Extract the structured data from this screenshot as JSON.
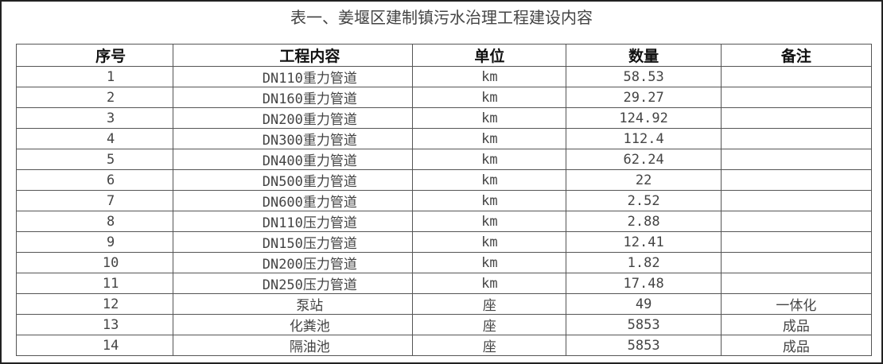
{
  "title": "表一、姜堰区建制镇污水治理工程建设内容",
  "table": {
    "headers": [
      "序号",
      "工程内容",
      "单位",
      "数量",
      "备注"
    ],
    "rows": [
      [
        "1",
        "DN110重力管道",
        "km",
        "58.53",
        ""
      ],
      [
        "2",
        "DN160重力管道",
        "km",
        "29.27",
        ""
      ],
      [
        "3",
        "DN200重力管道",
        "km",
        "124.92",
        ""
      ],
      [
        "4",
        "DN300重力管道",
        "km",
        "112.4",
        ""
      ],
      [
        "5",
        "DN400重力管道",
        "km",
        "62.24",
        ""
      ],
      [
        "6",
        "DN500重力管道",
        "km",
        "22",
        ""
      ],
      [
        "7",
        "DN600重力管道",
        "km",
        "2.52",
        ""
      ],
      [
        "8",
        "DN110压力管道",
        "km",
        "2.88",
        ""
      ],
      [
        "9",
        "DN150压力管道",
        "km",
        "12.41",
        ""
      ],
      [
        "10",
        "DN200压力管道",
        "km",
        "1.82",
        ""
      ],
      [
        "11",
        "DN250压力管道",
        "km",
        "17.48",
        ""
      ],
      [
        "12",
        "泵站",
        "座",
        "49",
        "一体化"
      ],
      [
        "13",
        "化粪池",
        "座",
        "5853",
        "成品"
      ],
      [
        "14",
        "隔油池",
        "座",
        "5853",
        "成品"
      ]
    ]
  }
}
